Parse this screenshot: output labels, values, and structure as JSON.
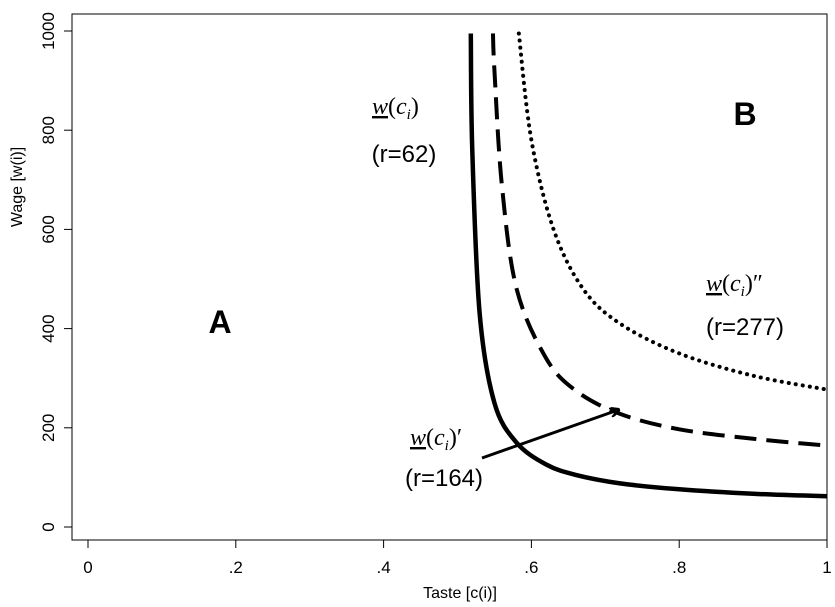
{
  "chart_data": {
    "type": "line",
    "xlabel": "Taste [c(i)]",
    "ylabel": "Wage [w(i)]",
    "xlim": [
      0,
      1
    ],
    "ylim": [
      0,
      1000
    ],
    "x_ticks": [
      {
        "value": 0,
        "label": "0"
      },
      {
        "value": 0.2,
        "label": ".2"
      },
      {
        "value": 0.4,
        "label": ".4"
      },
      {
        "value": 0.6,
        "label": ".6"
      },
      {
        "value": 0.8,
        "label": ".8"
      },
      {
        "value": 1,
        "label": "1"
      }
    ],
    "y_ticks": [
      {
        "value": 0,
        "label": "0"
      },
      {
        "value": 200,
        "label": "200"
      },
      {
        "value": 400,
        "label": "400"
      },
      {
        "value": 600,
        "label": "600"
      },
      {
        "value": 800,
        "label": "800"
      },
      {
        "value": 1000,
        "label": "1000"
      }
    ],
    "grid": false,
    "series": [
      {
        "label_func": "w(c_i)",
        "label_r": "(r=62)",
        "style": "solid",
        "x": [
          0.518,
          0.52,
          0.53,
          0.55,
          0.58,
          0.62,
          0.66,
          0.72,
          0.8,
          0.9,
          1.0
        ],
        "y": [
          995,
          760,
          430,
          250,
          170,
          126,
          105,
          88,
          76,
          67,
          62
        ]
      },
      {
        "label_func": "w(c_i)′",
        "label_r": "(r=164)",
        "style": "dashed",
        "x": [
          0.548,
          0.55,
          0.56,
          0.58,
          0.62,
          0.66,
          0.72,
          0.8,
          0.9,
          1.0
        ],
        "y": [
          995,
          920,
          690,
          480,
          340,
          275,
          228,
          197,
          178,
          164
        ]
      },
      {
        "label_func": "w(c_i)″",
        "label_r": "(r=277)",
        "style": "dotted",
        "x": [
          0.583,
          0.6,
          0.63,
          0.67,
          0.72,
          0.8,
          0.9,
          1.0
        ],
        "y": [
          995,
          780,
          600,
          480,
          410,
          350,
          305,
          277
        ]
      }
    ],
    "annotations": {
      "region_a": "A",
      "region_b": "B"
    }
  }
}
